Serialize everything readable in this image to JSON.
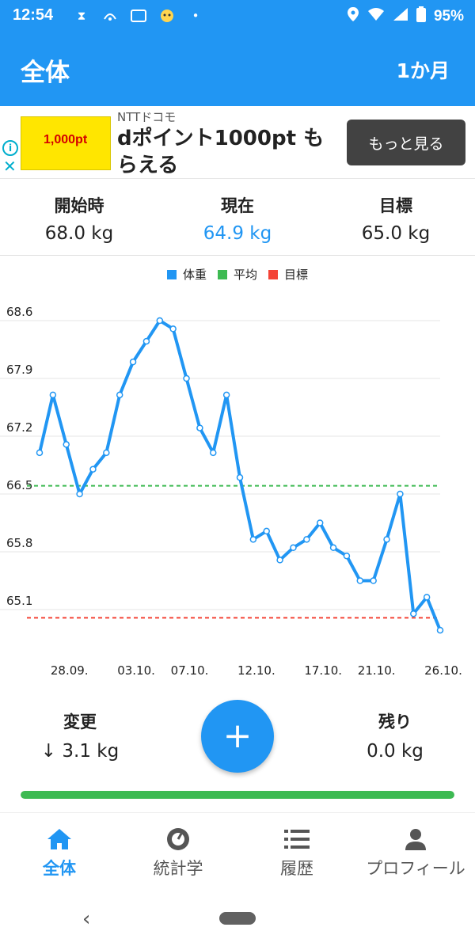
{
  "status_bar": {
    "time": "12:54",
    "battery": "95%"
  },
  "app_bar": {
    "title": "全体",
    "period": "1か月"
  },
  "ad": {
    "advertiser": "NTTドコモ",
    "headline": "dポイント1000pt もらえる",
    "cta": "もっと見る",
    "image_text": "1,000pt"
  },
  "summary": {
    "start_label": "開始時",
    "start_value": "68.0 kg",
    "current_label": "現在",
    "current_value": "64.9 kg",
    "goal_label": "目標",
    "goal_value": "65.0 kg"
  },
  "colors": {
    "primary": "#2196f3",
    "weight_line": "#2196f3",
    "average_line": "#3dba52",
    "goal_line": "#f44336",
    "progress": "#3dba52"
  },
  "chart_data": {
    "type": "line",
    "legend": [
      "体重",
      "平均",
      "目標"
    ],
    "legend_placement": "top-center",
    "y_ticks": [
      "68.6",
      "67.9",
      "67.2",
      "66.5",
      "65.8",
      "65.1"
    ],
    "y_tick_values": [
      68.6,
      67.9,
      67.2,
      66.5,
      65.8,
      65.1
    ],
    "ylim": [
      64.9,
      68.6
    ],
    "x_labels": [
      "28.09.",
      "03.10.",
      "07.10.",
      "12.10.",
      "17.10.",
      "21.10.",
      "26.10."
    ],
    "x_label_indices": [
      2,
      7,
      11,
      16,
      21,
      25,
      30
    ],
    "grid": true,
    "series": [
      {
        "name": "体重",
        "values": [
          67.0,
          67.7,
          67.1,
          66.5,
          66.8,
          67.0,
          67.7,
          68.1,
          68.35,
          68.6,
          68.5,
          67.9,
          67.3,
          67.0,
          67.7,
          66.7,
          65.95,
          66.05,
          65.7,
          65.85,
          65.95,
          66.15,
          65.85,
          65.75,
          65.45,
          65.45,
          65.95,
          66.5,
          65.05,
          65.25,
          64.85
        ]
      }
    ],
    "average": 66.6,
    "goal": 65.0
  },
  "stats": {
    "change_label": "変更",
    "change_arrow": "↓",
    "change_value": "3.1 kg",
    "remaining_label": "残り",
    "remaining_value": "0.0 kg",
    "progress_fraction": 1.0
  },
  "fab": {
    "label": "+"
  },
  "bottom_nav": {
    "items": [
      {
        "label": "全体",
        "icon": "home-icon",
        "active": true
      },
      {
        "label": "統計学",
        "icon": "scale-icon",
        "active": false
      },
      {
        "label": "履歴",
        "icon": "list-icon",
        "active": false
      },
      {
        "label": "プロフィール",
        "icon": "person-icon",
        "active": false
      }
    ]
  }
}
